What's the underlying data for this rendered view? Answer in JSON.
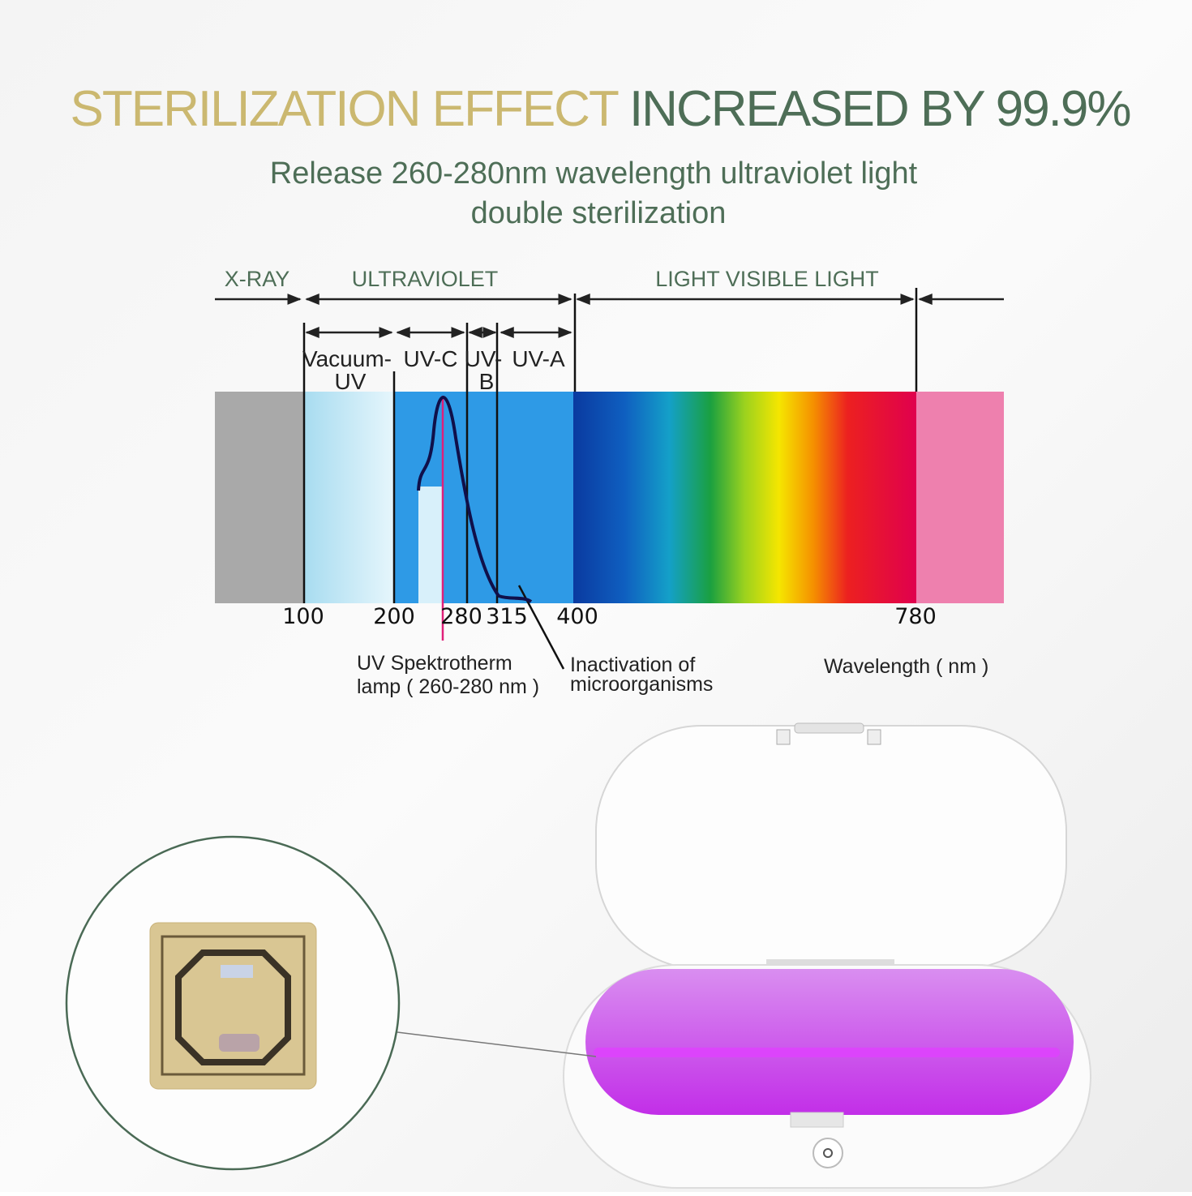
{
  "header": {
    "title_part1": "STERILIZATION EFFECT",
    "title_part2": "INCREASED BY 99.9%",
    "subtitle_line1": "Release 260-280nm wavelength ultraviolet light",
    "subtitle_line2": "double sterilization"
  },
  "spectrum": {
    "regions": [
      "X-RAY",
      "ULTRAVIOLET",
      "LIGHT VISIBLE LIGHT"
    ],
    "bands": [
      "Vacuum-",
      "UV",
      "UV-C",
      "UV-",
      "B",
      "UV-A"
    ],
    "scale": [
      100,
      200,
      280,
      315,
      400,
      780
    ],
    "notes": [
      "UV Spektrotherm",
      "lamp ( 260-280 nm )",
      "Inactivation  of",
      "microorganisms"
    ],
    "axis_label": "Wavelength ( nm )"
  }
}
